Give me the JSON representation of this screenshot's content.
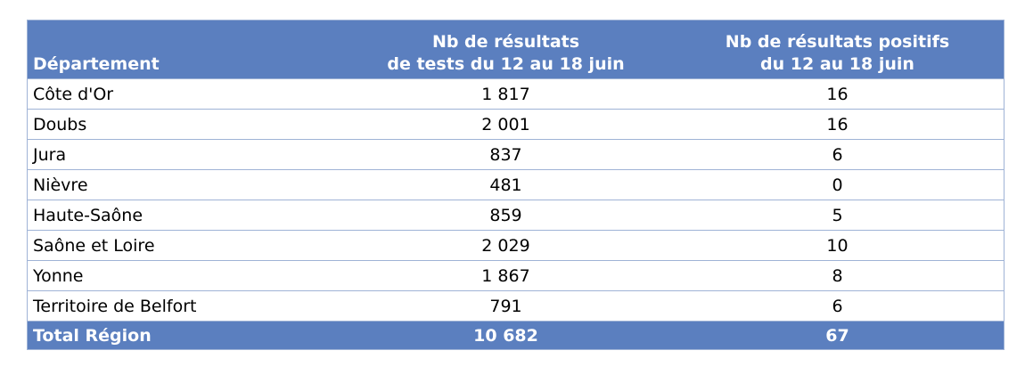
{
  "table": {
    "headers": {
      "department": "Département",
      "tests_line1": "Nb de résultats",
      "tests_line2": "de tests du 12 au 18 juin",
      "positives_line1": "Nb de résultats positifs",
      "positives_line2": "du 12 au 18 juin"
    },
    "rows": [
      {
        "department": "Côte d'Or",
        "tests": "1 817",
        "positives": "16"
      },
      {
        "department": "Doubs",
        "tests": "2 001",
        "positives": "16"
      },
      {
        "department": "Jura",
        "tests": "837",
        "positives": "6"
      },
      {
        "department": "Nièvre",
        "tests": "481",
        "positives": "0"
      },
      {
        "department": "Haute-Saône",
        "tests": "859",
        "positives": "5"
      },
      {
        "department": "Saône et Loire",
        "tests": "2 029",
        "positives": "10"
      },
      {
        "department": "Yonne",
        "tests": "1 867",
        "positives": "8"
      },
      {
        "department": "Territoire de Belfort",
        "tests": "791",
        "positives": "6"
      }
    ],
    "total": {
      "department": "Total Région",
      "tests": "10 682",
      "positives": "67"
    },
    "colors": {
      "header_bg": "#5b7fbf",
      "header_text": "#ffffff",
      "border": "#9fb3d6"
    }
  }
}
